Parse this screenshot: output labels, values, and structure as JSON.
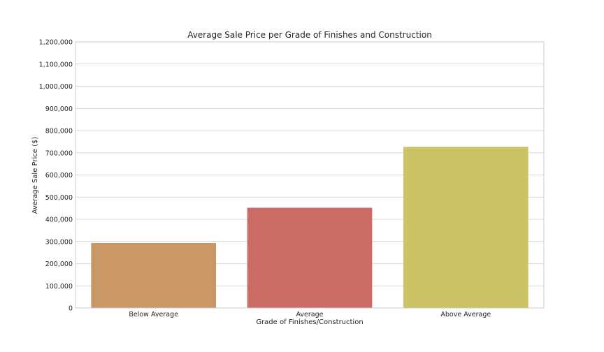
{
  "chart_data": {
    "type": "bar",
    "title": "Average Sale Price per Grade of Finishes and Construction",
    "xlabel": "Grade of Finishes/Construction",
    "ylabel": "Average Sale Price ($)",
    "categories": [
      "Below Average",
      "Average",
      "Above Average"
    ],
    "values": [
      293000,
      452000,
      727000
    ],
    "colors": [
      "#ca9766",
      "#ca6b65",
      "#ccc266"
    ],
    "ylim": [
      0,
      1200000
    ],
    "yticks": [
      0,
      100000,
      200000,
      300000,
      400000,
      500000,
      600000,
      700000,
      800000,
      900000,
      1000000,
      1100000,
      1200000
    ],
    "ytick_labels": [
      "0",
      "100,000",
      "200,000",
      "300,000",
      "400,000",
      "500,000",
      "600,000",
      "700,000",
      "800,000",
      "900,000",
      "1,000,000",
      "1,100,000",
      "1,200,000"
    ],
    "grid": true,
    "legend": "none"
  }
}
